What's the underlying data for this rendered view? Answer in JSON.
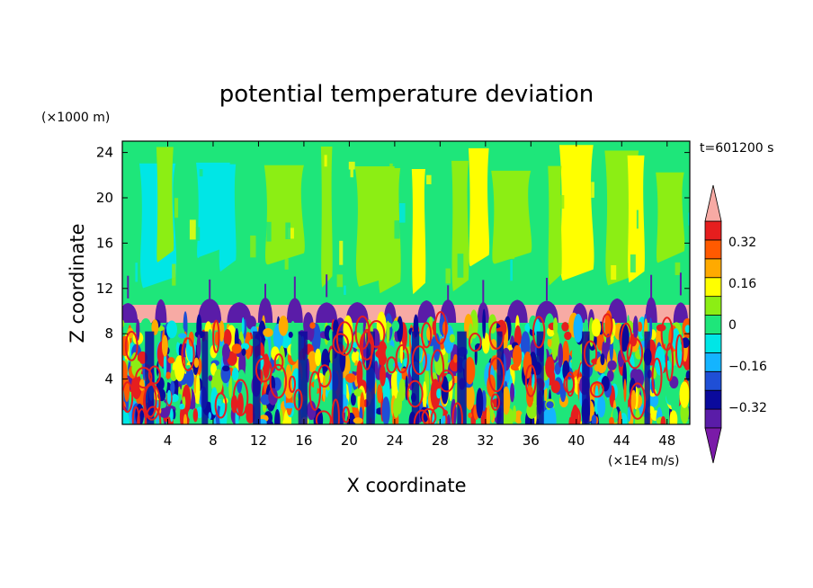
{
  "chart_data": {
    "type": "heatmap",
    "title": "potential temperature deviation",
    "xlabel": "X coordinate",
    "ylabel": "Z coordinate",
    "x_unit": "(×1E4 m/s)",
    "y_unit": "(×1000 m)",
    "time_label": "t=601200 s",
    "x_ticks": [
      4,
      8,
      12,
      16,
      20,
      24,
      28,
      32,
      36,
      40,
      44,
      48
    ],
    "y_ticks": [
      4,
      8,
      12,
      16,
      20,
      24
    ],
    "xlim": [
      0,
      50
    ],
    "ylim": [
      0,
      25
    ],
    "colorbar": {
      "levels": [
        -0.4,
        -0.32,
        -0.24,
        -0.16,
        -0.08,
        0,
        0.08,
        0.16,
        0.24,
        0.32,
        0.4
      ],
      "tick_labels": [
        "0.32",
        "0.16",
        "0",
        "−0.16",
        "−0.32"
      ],
      "tick_values": [
        0.32,
        0.16,
        0,
        -0.16,
        -0.32
      ],
      "colors": [
        "#5a1ca8",
        "#0a0a9c",
        "#1f4fd6",
        "#14b4ff",
        "#00e6e6",
        "#1ee67a",
        "#8cee14",
        "#ffff00",
        "#ffaa00",
        "#ff5a00",
        "#e61e1e"
      ],
      "extend_low_color": "#7a1aa8",
      "extend_high_color": "#f7aaa4"
    },
    "layers": [
      {
        "z_range": [
          10.8,
          25
        ],
        "description": "mostly weak deviations -0.16 to 0.16"
      },
      {
        "z_range": [
          9,
          10.8
        ],
        "description": "strong positive and negative bands"
      },
      {
        "z_range": [
          0,
          9
        ],
        "description": "turbulent mixed layer, full range"
      }
    ]
  }
}
